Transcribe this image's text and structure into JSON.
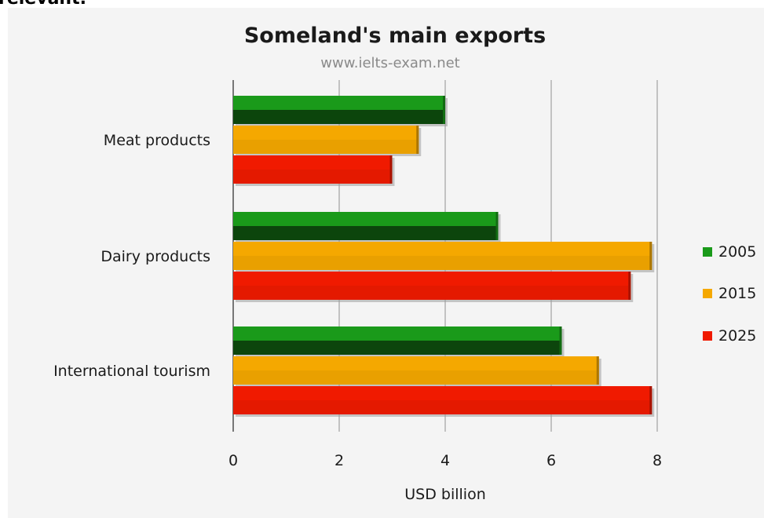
{
  "cutoff_heading": "relevant.",
  "chart_data": {
    "type": "bar",
    "orientation": "horizontal",
    "title": "Someland's main exports",
    "subtitle": "www.ielts-exam.net",
    "categories": [
      "Meat products",
      "Dairy products",
      "International tourism"
    ],
    "series": [
      {
        "name": "2005",
        "values": [
          4,
          5,
          6.2
        ],
        "color": "#1a9a1a"
      },
      {
        "name": "2015",
        "values": [
          3.5,
          7.9,
          6.9
        ],
        "color": "#f5a800"
      },
      {
        "name": "2025",
        "values": [
          3,
          7.5,
          7.9
        ],
        "color": "#f01a00"
      }
    ],
    "xlabel": "USD billion",
    "xlim": [
      0,
      8
    ],
    "xticks": [
      "0",
      "2",
      "4",
      "6",
      "8"
    ],
    "grid": true,
    "legend_position": "right"
  }
}
